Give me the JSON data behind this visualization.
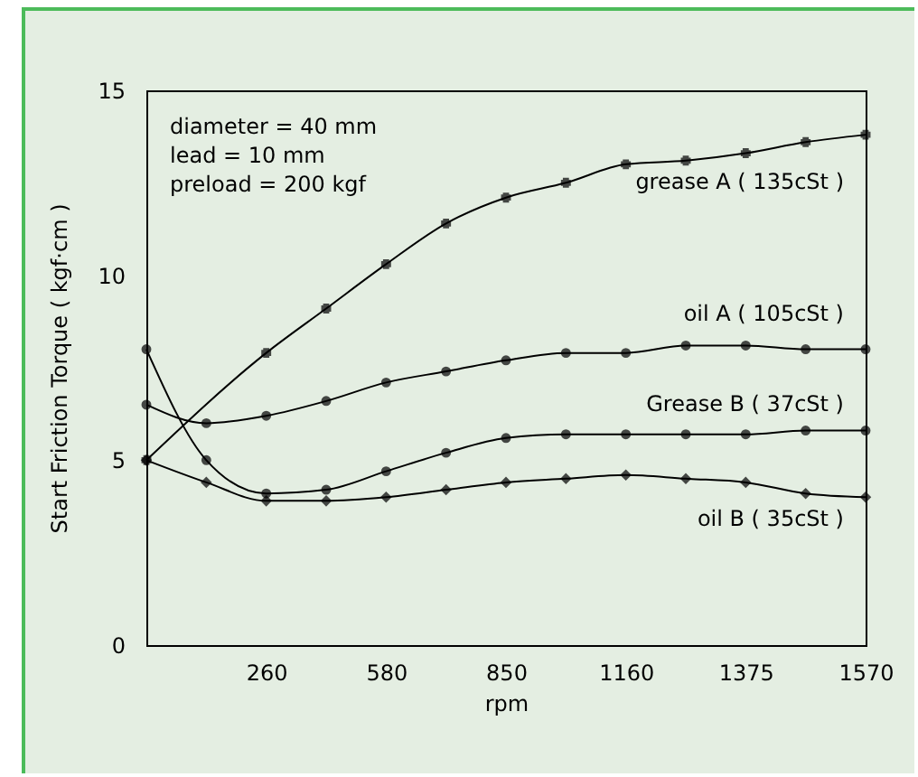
{
  "chart_data": {
    "type": "line",
    "xlabel": "rpm",
    "ylabel": "Start Friction Torque ( kgf·cm )",
    "categories": [
      null,
      null,
      "260",
      null,
      "580",
      null,
      "850",
      null,
      "1160",
      null,
      "1375",
      null,
      "1570"
    ],
    "ylim": [
      0,
      15
    ],
    "yticks": [
      0,
      5,
      10,
      15
    ],
    "grid": false,
    "annotations": [
      "diameter = 40 mm",
      "lead = 10 mm",
      "preload = 200 kgf"
    ],
    "series": [
      {
        "name": "grease A ( 135cSt )",
        "color": "#000000",
        "marker": "cross",
        "values": [
          5.0,
          null,
          7.9,
          9.1,
          10.3,
          11.4,
          12.1,
          12.5,
          13.0,
          13.1,
          13.3,
          13.6,
          13.8
        ]
      },
      {
        "name": "oil A ( 105cSt )",
        "color": "#000000",
        "marker": "circle",
        "values": [
          6.5,
          6.0,
          6.2,
          6.6,
          7.1,
          7.4,
          7.7,
          7.9,
          7.9,
          8.1,
          8.1,
          8.0,
          8.0
        ]
      },
      {
        "name": "Grease B ( 37cSt )",
        "color": "#000000",
        "marker": "circle",
        "values": [
          8.0,
          5.0,
          4.1,
          4.2,
          4.7,
          5.2,
          5.6,
          5.7,
          5.7,
          5.7,
          5.7,
          5.8,
          5.8
        ]
      },
      {
        "name": "oil B ( 35cSt )",
        "color": "#000000",
        "marker": "diamond",
        "values": [
          5.0,
          4.4,
          3.9,
          3.9,
          4.0,
          4.2,
          4.4,
          4.5,
          4.6,
          4.5,
          4.4,
          4.1,
          4.0
        ]
      }
    ]
  }
}
